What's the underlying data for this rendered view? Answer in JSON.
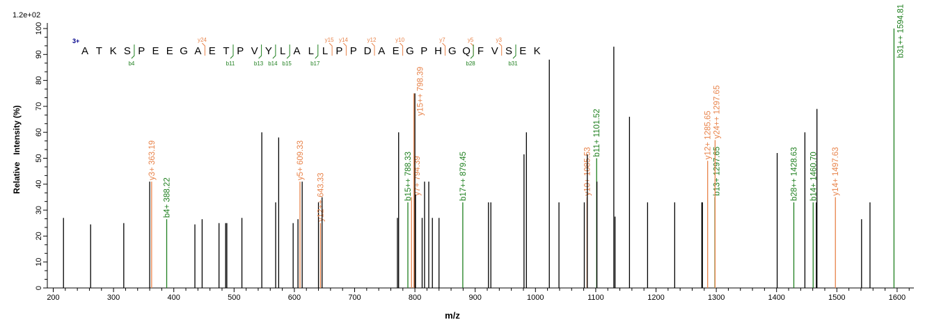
{
  "chart_data": {
    "type": "bar",
    "xlabel": "m/z",
    "ylabel": "Relative   Intensity (%)",
    "y_top_label": "1.2e+02",
    "xlim": [
      190,
      1628
    ],
    "ylim": [
      0,
      102
    ],
    "xticks": [
      200,
      300,
      400,
      500,
      600,
      700,
      800,
      900,
      1000,
      1100,
      1200,
      1300,
      1400,
      1500,
      1600
    ],
    "yticks": [
      0,
      10,
      20,
      30,
      40,
      50,
      60,
      70,
      80,
      90,
      100
    ],
    "colors": {
      "unmatched": "#000000",
      "y_ion": "#E8834A",
      "b_ion": "#1E7F1E",
      "charge": "#00008B"
    },
    "sequence": {
      "charge": "3+",
      "residues": "ATKSPEEGAETPVYLALLPPDAEGPHGQFVSEK",
      "y_ions": [
        24,
        15,
        14,
        12,
        10,
        7,
        5,
        3
      ],
      "b_ions": [
        4,
        11,
        13,
        14,
        15,
        17,
        28,
        31
      ]
    },
    "peaks": [
      {
        "mz": 217,
        "intensity": 27
      },
      {
        "mz": 262,
        "intensity": 24.5
      },
      {
        "mz": 317,
        "intensity": 25
      },
      {
        "mz": 360,
        "intensity": 41
      },
      {
        "mz": 363.19,
        "intensity": 41,
        "type": "y",
        "label": "y3+ 363.19"
      },
      {
        "mz": 388.22,
        "intensity": 26.5,
        "type": "b",
        "label": "b4+ 388.22"
      },
      {
        "mz": 435,
        "intensity": 24.5
      },
      {
        "mz": 447,
        "intensity": 26.5
      },
      {
        "mz": 475,
        "intensity": 25
      },
      {
        "mz": 486,
        "intensity": 25
      },
      {
        "mz": 488,
        "intensity": 25
      },
      {
        "mz": 513,
        "intensity": 27
      },
      {
        "mz": 546,
        "intensity": 60
      },
      {
        "mz": 569,
        "intensity": 33
      },
      {
        "mz": 574,
        "intensity": 58
      },
      {
        "mz": 598,
        "intensity": 25
      },
      {
        "mz": 606,
        "intensity": 26.5
      },
      {
        "mz": 609.33,
        "intensity": 41,
        "type": "y",
        "label": "y5+ 609.33"
      },
      {
        "mz": 613,
        "intensity": 41
      },
      {
        "mz": 640,
        "intensity": 33
      },
      {
        "mz": 643.33,
        "intensity": 25,
        "type": "y",
        "label": "y12++ 643.33"
      },
      {
        "mz": 646,
        "intensity": 35
      },
      {
        "mz": 771,
        "intensity": 27
      },
      {
        "mz": 773,
        "intensity": 60
      },
      {
        "mz": 788.33,
        "intensity": 33,
        "type": "b",
        "label": "b15++ 788.33"
      },
      {
        "mz": 794.39,
        "intensity": 35,
        "type": "y",
        "label": "y7+ 794.39"
      },
      {
        "mz": 798.39,
        "intensity": 75,
        "type": "y",
        "label": "y15++ 798.39"
      },
      {
        "mz": 800,
        "intensity": 75
      },
      {
        "mz": 801,
        "intensity": 36
      },
      {
        "mz": 812,
        "intensity": 27
      },
      {
        "mz": 816,
        "intensity": 41
      },
      {
        "mz": 823,
        "intensity": 41
      },
      {
        "mz": 829,
        "intensity": 27
      },
      {
        "mz": 840,
        "intensity": 27
      },
      {
        "mz": 879.45,
        "intensity": 33,
        "type": "b",
        "label": "b17++ 879.45"
      },
      {
        "mz": 922,
        "intensity": 33
      },
      {
        "mz": 926,
        "intensity": 33
      },
      {
        "mz": 981,
        "intensity": 51.5
      },
      {
        "mz": 985,
        "intensity": 60
      },
      {
        "mz": 1023,
        "intensity": 88
      },
      {
        "mz": 1039,
        "intensity": 33
      },
      {
        "mz": 1081,
        "intensity": 33
      },
      {
        "mz": 1085.53,
        "intensity": 35,
        "type": "y",
        "label": "y10+ 1085.53"
      },
      {
        "mz": 1086,
        "intensity": 51.5
      },
      {
        "mz": 1101.52,
        "intensity": 50,
        "type": "b",
        "label": "b11+ 1101.52"
      },
      {
        "mz": 1102,
        "intensity": 41
      },
      {
        "mz": 1130,
        "intensity": 93
      },
      {
        "mz": 1132,
        "intensity": 27.5
      },
      {
        "mz": 1156,
        "intensity": 66
      },
      {
        "mz": 1186,
        "intensity": 33
      },
      {
        "mz": 1231,
        "intensity": 33
      },
      {
        "mz": 1276,
        "intensity": 33
      },
      {
        "mz": 1277,
        "intensity": 33
      },
      {
        "mz": 1285.65,
        "intensity": 49,
        "type": "y",
        "label": "y12+ 1285.65"
      },
      {
        "mz": 1297.65,
        "intensity": 35,
        "type": "b",
        "label": "b13+ 1297.65"
      },
      {
        "mz": 1298,
        "intensity": 57,
        "type": "y",
        "label": "y24++ 1297.65"
      },
      {
        "mz": 1401,
        "intensity": 52
      },
      {
        "mz": 1428.63,
        "intensity": 33,
        "type": "b",
        "label": "b28++ 1428.63"
      },
      {
        "mz": 1447,
        "intensity": 60
      },
      {
        "mz": 1460.7,
        "intensity": 33,
        "type": "b",
        "label": "b14+ 1460.70"
      },
      {
        "mz": 1467,
        "intensity": 69
      },
      {
        "mz": 1466,
        "intensity": 33
      },
      {
        "mz": 1497.63,
        "intensity": 35,
        "type": "y",
        "label": "y14+ 1497.63"
      },
      {
        "mz": 1541,
        "intensity": 26.5
      },
      {
        "mz": 1555,
        "intensity": 33
      },
      {
        "mz": 1594.81,
        "intensity": 100,
        "type": "b",
        "label": "b31++ 1594.81"
      }
    ]
  }
}
